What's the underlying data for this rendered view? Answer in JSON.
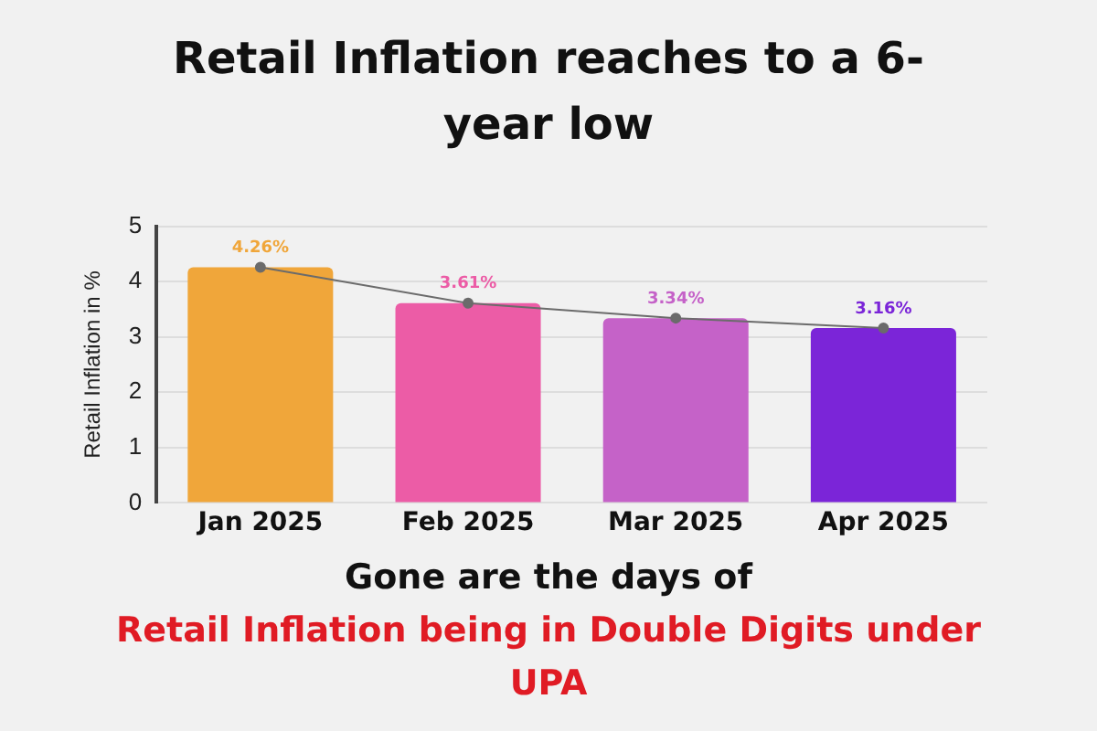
{
  "chart_data": {
    "type": "bar",
    "title": "Retail Inflation reaches to a 6-year low",
    "ylabel": "Retail Inflation in %",
    "categories": [
      "Jan 2025",
      "Feb 2025",
      "Mar 2025",
      "Apr 2025"
    ],
    "series": [
      {
        "colors": [
          "#f0a63a",
          "#ec5ca6",
          "#c562c8",
          "#7b25d8"
        ],
        "values": [
          4.26,
          3.61,
          3.34,
          3.16
        ],
        "value_labels": [
          "4.26%",
          "3.61%",
          "3.34%",
          "3.16%"
        ]
      },
      {
        "type": "line",
        "color": "#6b6b6b",
        "values": [
          4.26,
          3.61,
          3.34,
          3.16
        ]
      }
    ],
    "ylim": [
      0,
      5
    ],
    "yticks": [
      0,
      1,
      2,
      3,
      4,
      5
    ],
    "grid": "y",
    "marker": "circle",
    "legend": false,
    "annotations": [
      "Gone are the days of",
      "Retail Inflation being in Double Digits under UPA"
    ]
  }
}
